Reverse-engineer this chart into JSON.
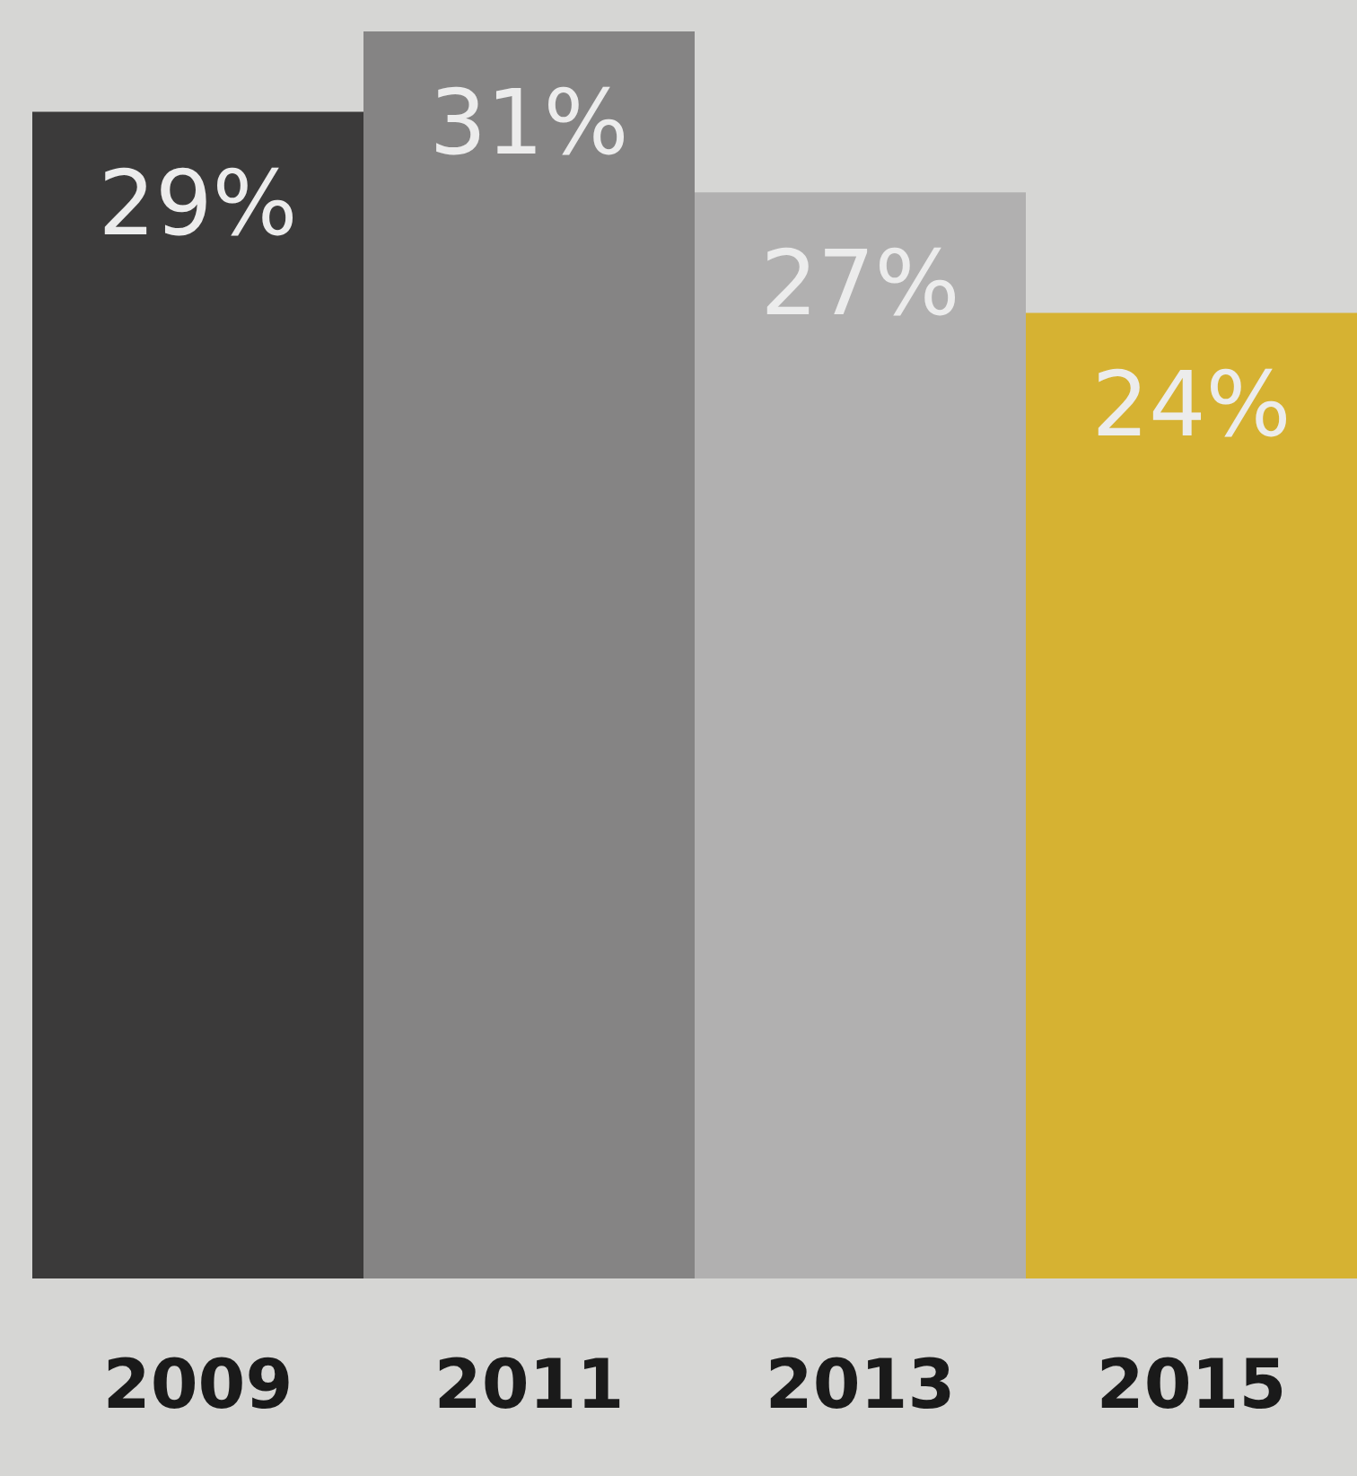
{
  "chart_data": {
    "type": "bar",
    "categories": [
      "2009",
      "2011",
      "2013",
      "2015"
    ],
    "values": [
      29,
      31,
      27,
      24
    ],
    "colors": [
      "#3b3a3a",
      "#858484",
      "#b1b0b0",
      "#d6b232"
    ],
    "value_labels": [
      "29%",
      "31%",
      "27%",
      "24%"
    ]
  }
}
